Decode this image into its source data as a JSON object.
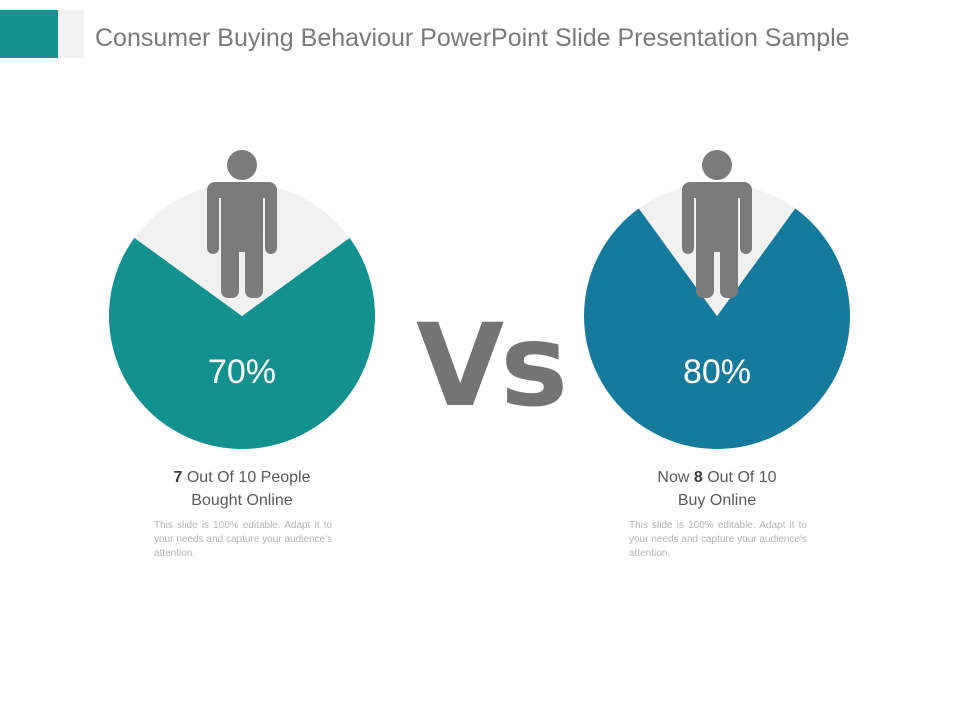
{
  "slide": {
    "title": "Consumer Buying Behaviour PowerPoint Slide Presentation Sample",
    "vs_label": "Vs"
  },
  "colors": {
    "teal": "#12918f",
    "blue": "#167a9c",
    "remainder": "#f1f1f1",
    "person": "#7b7b7b",
    "accent": "#12918f"
  },
  "chart_data": [
    {
      "type": "pie",
      "label": "70%",
      "values": [
        70,
        30
      ],
      "caption": {
        "pre": "",
        "bold": "7",
        "post": " Out Of 10 People",
        "line2": "Bought Online"
      },
      "description": "This slide is 100% editable. Adapt it to your needs and capture your audience's attention."
    },
    {
      "type": "pie",
      "label": "80%",
      "values": [
        80,
        20
      ],
      "caption": {
        "pre": "Now ",
        "bold": "8",
        "post": " Out Of 10",
        "line2": "Buy Online"
      },
      "description": "This slide is 100% editable. Adapt it to your needs and capture your audience's attention."
    }
  ]
}
